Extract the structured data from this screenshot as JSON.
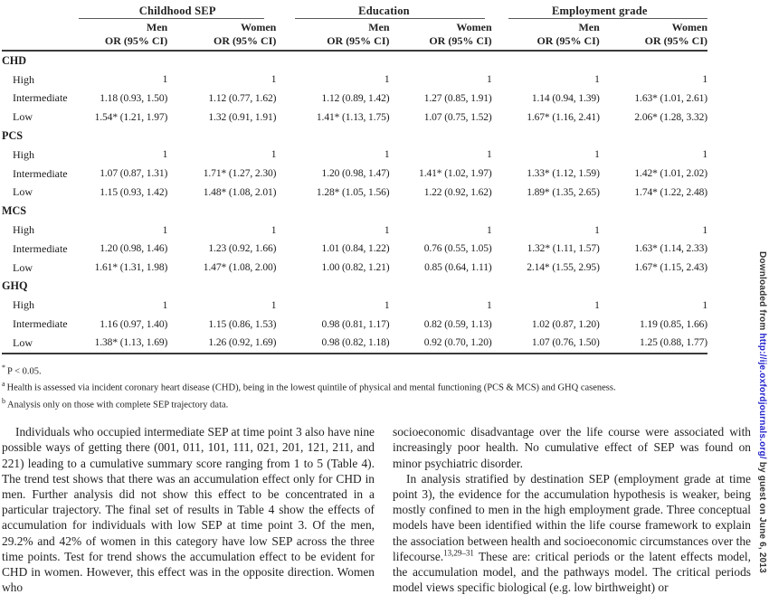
{
  "table": {
    "groups": [
      {
        "label": "Childhood SEP"
      },
      {
        "label": "Education"
      },
      {
        "label": "Employment grade"
      }
    ],
    "col_headers": [
      "Men",
      "Women",
      "Men",
      "Women",
      "Men",
      "Women"
    ],
    "or_label": "OR (95% CI)",
    "sections": [
      {
        "label": "CHD",
        "rows": [
          {
            "label": "High",
            "cells": [
              "1",
              "1",
              "1",
              "1",
              "1",
              "1"
            ]
          },
          {
            "label": "Intermediate",
            "cells": [
              "1.18 (0.93, 1.50)",
              "1.12 (0.77, 1.62)",
              "1.12 (0.89, 1.42)",
              "1.27 (0.85, 1.91)",
              "1.14 (0.94, 1.39)",
              "1.63* (1.01, 2.61)"
            ]
          },
          {
            "label": "Low",
            "cells": [
              "1.54* (1.21, 1.97)",
              "1.32 (0.91, 1.91)",
              "1.41* (1.13, 1.75)",
              "1.07 (0.75, 1.52)",
              "1.67* (1.16, 2.41)",
              "2.06* (1.28, 3.32)"
            ]
          }
        ]
      },
      {
        "label": "PCS",
        "rows": [
          {
            "label": "High",
            "cells": [
              "1",
              "1",
              "1",
              "1",
              "1",
              "1"
            ]
          },
          {
            "label": "Intermediate",
            "cells": [
              "1.07 (0.87, 1.31)",
              "1.71* (1.27, 2.30)",
              "1.20 (0.98, 1.47)",
              "1.41* (1.02, 1.97)",
              "1.33* (1.12, 1.59)",
              "1.42* (1.01, 2.02)"
            ]
          },
          {
            "label": "Low",
            "cells": [
              "1.15 (0.93, 1.42)",
              "1.48* (1.08, 2.01)",
              "1.28* (1.05, 1.56)",
              "1.22 (0.92, 1.62)",
              "1.89* (1.35, 2.65)",
              "1.74* (1.22, 2.48)"
            ]
          }
        ]
      },
      {
        "label": "MCS",
        "rows": [
          {
            "label": "High",
            "cells": [
              "1",
              "1",
              "1",
              "1",
              "1",
              "1"
            ]
          },
          {
            "label": "Intermediate",
            "cells": [
              "1.20 (0.98, 1.46)",
              "1.23 (0.92, 1.66)",
              "1.01 (0.84, 1.22)",
              "0.76 (0.55, 1.05)",
              "1.32* (1.11, 1.57)",
              "1.63* (1.14, 2.33)"
            ]
          },
          {
            "label": "Low",
            "cells": [
              "1.61* (1.31, 1.98)",
              "1.47* (1.08, 2.00)",
              "1.00 (0.82, 1.21)",
              "0.85 (0.64, 1.11)",
              "2.14* (1.55, 2.95)",
              "1.67* (1.15, 2.43)"
            ]
          }
        ]
      },
      {
        "label": "GHQ",
        "rows": [
          {
            "label": "High",
            "cells": [
              "1",
              "1",
              "1",
              "1",
              "1",
              "1"
            ]
          },
          {
            "label": "Intermediate",
            "cells": [
              "1.16 (0.97, 1.40)",
              "1.15 (0.86, 1.53)",
              "0.98 (0.81, 1.17)",
              "0.82 (0.59, 1.13)",
              "1.02 (0.87, 1.20)",
              "1.19 (0.85, 1.66)"
            ]
          },
          {
            "label": "Low",
            "cells": [
              "1.38* (1.13, 1.69)",
              "1.26 (0.92, 1.69)",
              "0.98 (0.82, 1.18)",
              "0.92 (0.70, 1.20)",
              "1.07 (0.76, 1.50)",
              "1.25 (0.88, 1.77)"
            ]
          }
        ]
      }
    ],
    "footnotes": [
      {
        "marker": "*",
        "text": "P < 0.05."
      },
      {
        "marker": "a",
        "text": "Health is assessed via incident coronary heart disease (CHD), being in the lowest quintile of physical and mental functioning (PCS & MCS) and GHQ caseness."
      },
      {
        "marker": "b",
        "text": "Analysis only on those with complete SEP trajectory data."
      }
    ]
  },
  "body": {
    "left_para": "Individuals who occupied intermediate SEP at time point 3 also have nine possible ways of getting there (001, 011, 101, 111, 021, 201, 121, 211, and 221) leading to a cumulative summary score ranging from 1 to 5 (Table 4). The trend test shows that there was an accumulation effect only for CHD in men. Further analysis did not show this effect to be concentrated in a particular trajectory. The final set of results in Table 4 show the effects of accumulation for individuals with low SEP at time point 3. Of the men, 29.2% and 42% of women in this category have low SEP across the three time points. Test for trend shows the accumulation effect to be evident for CHD in women. However, this effect was in the opposite direction. Women who",
    "right_para1": "socioeconomic disadvantage over the life course were associated with increasingly poor health. No cumulative effect of SEP was found on minor psychiatric disorder.",
    "right_para2_before": "In analysis stratified by destination SEP (employment grade at time point 3), the evidence for the accumulation hypothesis is weaker, being mostly confined to men in the high employment grade. Three conceptual models have been identified within the life course framework to explain the association between health and socioeconomic circumstances over the lifecourse.",
    "right_para2_citation": "13,29–31",
    "right_para2_after": " These are: critical periods or the latent effects model, the accumulation model, and the pathways model. The critical periods model views specific biological (e.g. low birthweight) or"
  },
  "sidebar": {
    "prefix": "Downloaded from ",
    "url": "http://ije.oxfordjournals.org/",
    "suffix": " by guest on June 6, 2013",
    "url_color": "#2323cc"
  }
}
